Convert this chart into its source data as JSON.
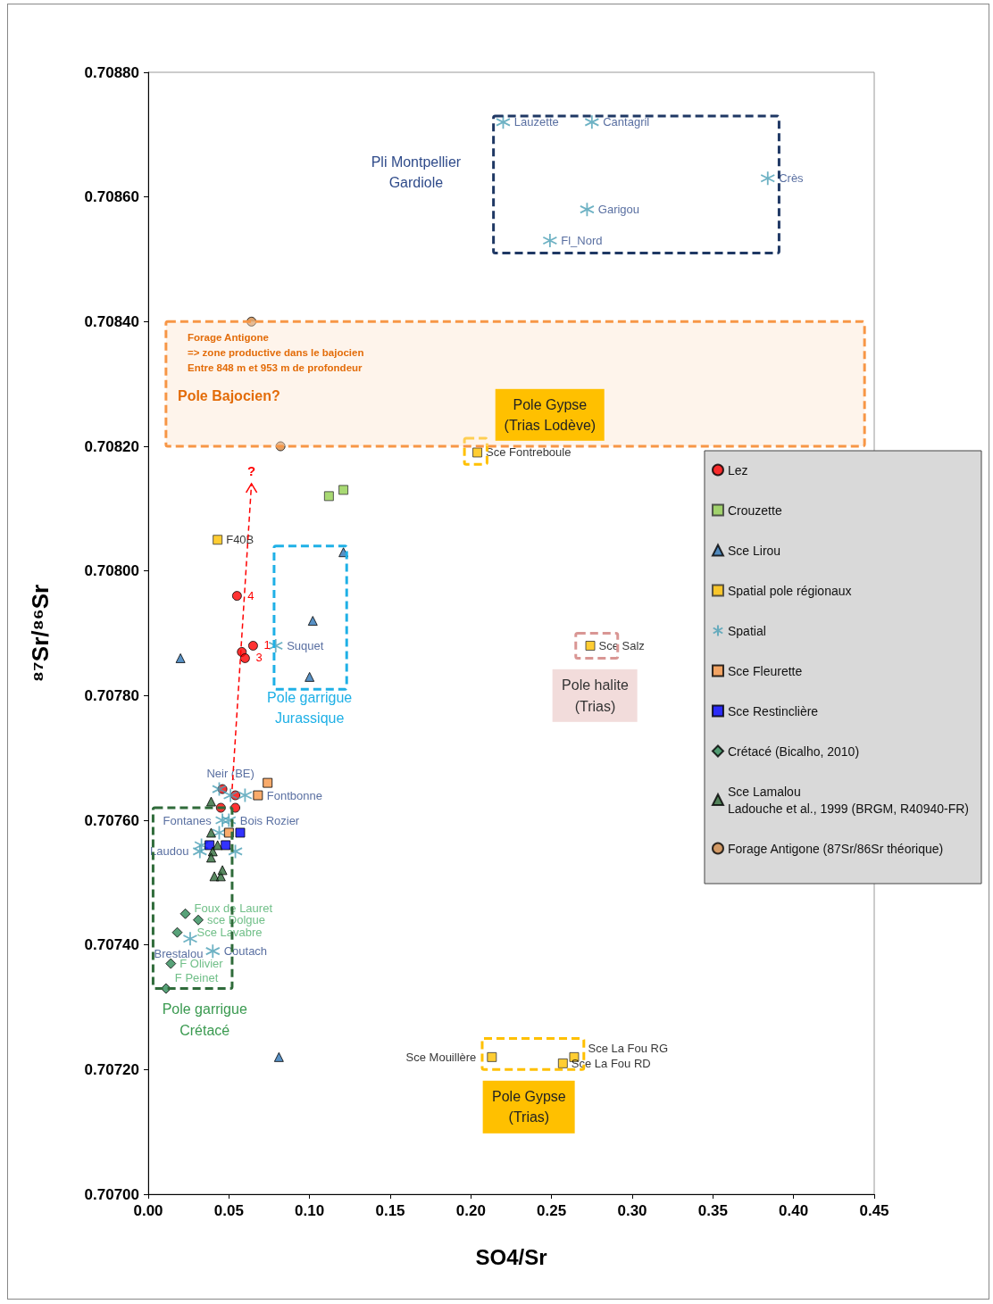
{
  "chart_data": {
    "type": "scatter",
    "xlabel": "SO4/Sr",
    "ylabel": "⁸⁷Sr/⁸⁶Sr",
    "xlim": [
      0,
      0.45
    ],
    "ylim": [
      0.707,
      0.7088
    ],
    "xticks": [
      {
        "value": 0,
        "label": "0.00"
      },
      {
        "value": 0.05,
        "label": "0.05"
      },
      {
        "value": 0.1,
        "label": "0.10"
      },
      {
        "value": 0.15,
        "label": "0.15"
      },
      {
        "value": 0.2,
        "label": "0.20"
      },
      {
        "value": 0.25,
        "label": "0.25"
      },
      {
        "value": 0.3,
        "label": "0.30"
      },
      {
        "value": 0.35,
        "label": "0.35"
      },
      {
        "value": 0.4,
        "label": "0.40"
      },
      {
        "value": 0.45,
        "label": "0.45"
      }
    ],
    "yticks": [
      {
        "value": 0.707,
        "label": "0.70700"
      },
      {
        "value": 0.7072,
        "label": "0.70720"
      },
      {
        "value": 0.7074,
        "label": "0.70740"
      },
      {
        "value": 0.7076,
        "label": "0.70760"
      },
      {
        "value": 0.7078,
        "label": "0.70780"
      },
      {
        "value": 0.708,
        "label": "0.70800"
      },
      {
        "value": 0.7082,
        "label": "0.70820"
      },
      {
        "value": 0.7084,
        "label": "0.70840"
      },
      {
        "value": 0.7086,
        "label": "0.70860"
      },
      {
        "value": 0.7088,
        "label": "0.70880"
      }
    ],
    "grid": false,
    "legend": "right",
    "series": [
      {
        "name": "Lez",
        "color": "#ff0000",
        "marker": "circle",
        "x": [
          0.055,
          0.065,
          0.058,
          0.06,
          0.046,
          0.054,
          0.045,
          0.054
        ],
        "values": [
          0.70796,
          0.70788,
          0.70787,
          0.70786,
          0.70765,
          0.70764,
          0.70762,
          0.70762
        ]
      },
      {
        "name": "Crouzette",
        "color": "#92d050",
        "marker": "square",
        "x": [
          0.112,
          0.121
        ],
        "values": [
          0.70812,
          0.70813
        ]
      },
      {
        "name": "Sce Lirou",
        "color": "#2e75b6",
        "marker": "triangle",
        "x": [
          0.02,
          0.121,
          0.102,
          0.1,
          0.081
        ],
        "values": [
          0.70786,
          0.70803,
          0.70792,
          0.70783,
          0.70722
        ]
      },
      {
        "name": "Spatial pole régionaux",
        "color": "#ffc000",
        "marker": "square",
        "x": [
          0.043,
          0.204,
          0.274,
          0.213,
          0.257,
          0.264
        ],
        "values": [
          0.70805,
          0.70819,
          0.70788,
          0.70722,
          0.70721,
          0.70722
        ],
        "value_labels": [
          "F40B",
          "Sce Fontreboule",
          "Sce Salz",
          "Sce Mouillère",
          "Sce La Fou RD",
          "Sce La Fou RG"
        ]
      },
      {
        "name": "Spatial",
        "color": "#4a9fb5",
        "marker": "cross",
        "x": [
          0.22,
          0.275,
          0.384,
          0.272,
          0.249,
          0.079,
          0.044,
          0.051,
          0.06,
          0.05,
          0.046,
          0.044,
          0.033,
          0.032,
          0.054,
          0.026,
          0.04
        ],
        "values": [
          0.70872,
          0.70872,
          0.70863,
          0.70858,
          0.70853,
          0.70788,
          0.70765,
          0.70764,
          0.70764,
          0.7076,
          0.7076,
          0.70758,
          0.70756,
          0.70755,
          0.70755,
          0.70741,
          0.70739
        ],
        "value_labels": [
          "Lauzette",
          "Cantagril",
          "Crès",
          "Garigou",
          "Fl_Nord",
          "Suquet",
          null,
          "Neir (BE)",
          "Fontbonne",
          "Bois Rozier",
          "Fontanes",
          null,
          null,
          "Laudou",
          null,
          "Brestalou",
          "Coutach"
        ]
      },
      {
        "name": "Sce Fleurette",
        "color": "#f79646",
        "marker": "square",
        "x": [
          0.074,
          0.068,
          0.05
        ],
        "values": [
          0.70766,
          0.70764,
          0.70758
        ]
      },
      {
        "name": "Sce Restinclière",
        "color": "#0000ff",
        "marker": "square",
        "x": [
          0.057,
          0.038,
          0.048
        ],
        "values": [
          0.70758,
          0.70756,
          0.70756
        ]
      },
      {
        "name": "Crétacé (Bicalho, 2010)",
        "color": "#2e8b57",
        "marker": "diamond",
        "x": [
          0.023,
          0.031,
          0.018,
          0.014,
          0.011
        ],
        "values": [
          0.70745,
          0.70744,
          0.70742,
          0.70737,
          0.70733
        ],
        "value_labels": [
          "Foux de Lauret",
          "sce Dolgue",
          "Sce Lavabre",
          "F Olivier",
          "F Peinet"
        ]
      },
      {
        "name": "Sce Lamalou\nLadouche et al., 1999 (BRGM, R40940-FR)",
        "color": "#2f6b3a",
        "marker": "triangle",
        "x": [
          0.039,
          0.039,
          0.04,
          0.039,
          0.043,
          0.041,
          0.045,
          0.046
        ],
        "values": [
          0.70763,
          0.70758,
          0.70755,
          0.70754,
          0.70756,
          0.70751,
          0.70751,
          0.70752
        ]
      },
      {
        "name": "Forage Antigone (87Sr/86Sr théorique)",
        "color": "#d08a48",
        "marker": "circle",
        "x": [
          0.064,
          0.082
        ],
        "values": [
          0.7084,
          0.7082
        ]
      }
    ],
    "annotations": [
      "Pli Montpellier\nGardiole",
      "Forage Antigone\n=> zone productive dans le bajocien\nEntre 848 m et 953 m de profondeur",
      "Pole Bajocien?",
      "Pole Gypse\n(Trias Lodève)",
      "?",
      "Pole garrigue\nJurassique",
      "Pole halite\n(Trias)",
      "Pole garrigue\nCrétacé",
      "Pole Gypse\n(Trias)",
      {
        "text": "4",
        "x": 0.055,
        "y": 0.70796
      },
      {
        "text": "1",
        "x": 0.065,
        "y": 0.70788
      },
      {
        "text": "3",
        "x": 0.06,
        "y": 0.70786
      }
    ]
  }
}
